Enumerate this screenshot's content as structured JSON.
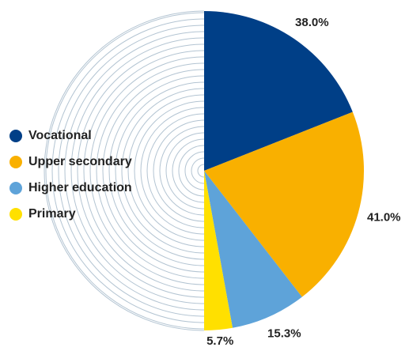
{
  "chart_data": {
    "type": "pie",
    "categories": [
      "Vocational",
      "Upper secondary",
      "Higher education",
      "Primary"
    ],
    "values": [
      38.0,
      41.0,
      15.3,
      5.7
    ],
    "value_labels": [
      "38.0%",
      "41.0%",
      "15.3%",
      "5.7%"
    ],
    "colors": [
      "#003f87",
      "#f9b000",
      "#5ea3d9",
      "#ffe000"
    ]
  }
}
